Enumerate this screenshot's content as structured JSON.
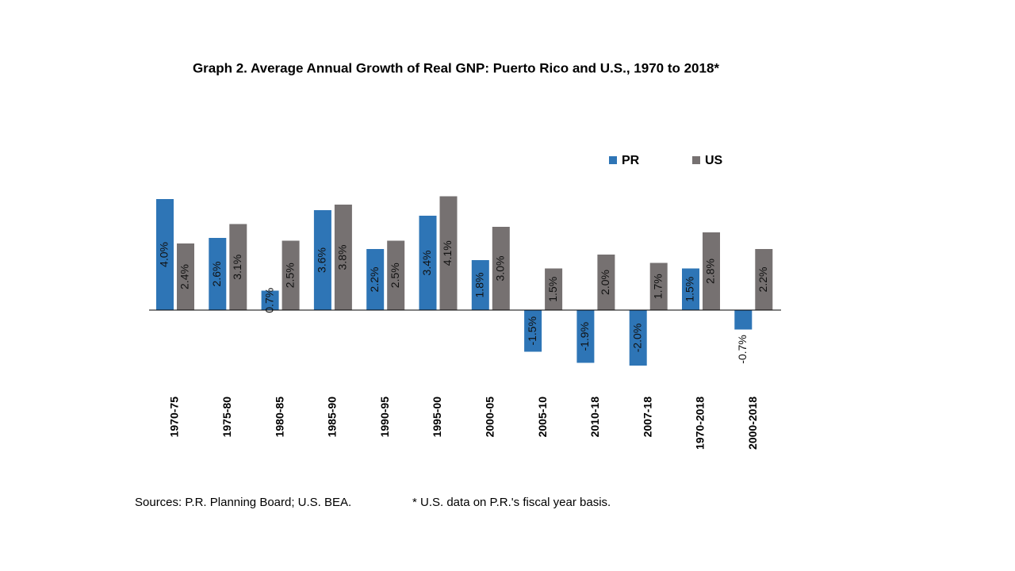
{
  "chart_data": {
    "type": "bar",
    "title": "Graph 2. Average Annual Growth of Real GNP: Puerto Rico and U.S., 1970 to 2018*",
    "categories": [
      "1970-75",
      "1975-80",
      "1980-85",
      "1985-90",
      "1990-95",
      "1995-00",
      "2000-05",
      "2005-10",
      "2010-18",
      "2007-18",
      "1970-2018",
      "2000-2018"
    ],
    "series": [
      {
        "name": "PR",
        "color": "#2e75b6",
        "values": [
          4.0,
          2.6,
          0.7,
          3.6,
          2.2,
          3.4,
          1.8,
          -1.5,
          -1.9,
          -2.0,
          1.5,
          -0.7
        ],
        "value_labels": [
          "4.0%",
          "2.6%",
          "0.7%",
          "3.6%",
          "2.2%",
          "3.4%",
          "1.8%",
          "-1.5%",
          "-1.9%",
          "-2.0%",
          "1.5%",
          "-0.7%"
        ]
      },
      {
        "name": "US",
        "color": "#767171",
        "values": [
          2.4,
          3.1,
          2.5,
          3.8,
          2.5,
          4.1,
          3.0,
          1.5,
          2.0,
          1.7,
          2.8,
          2.2
        ],
        "value_labels": [
          "2.4%",
          "3.1%",
          "2.5%",
          "3.8%",
          "2.5%",
          "4.1%",
          "3.0%",
          "1.5%",
          "2.0%",
          "1.7%",
          "2.8%",
          "2.2%"
        ]
      }
    ],
    "legend": "top-right",
    "notes": [
      "Sources: P.R. Planning Board; U.S. BEA.",
      "* U.S. data on P.R.'s fiscal year basis."
    ]
  }
}
